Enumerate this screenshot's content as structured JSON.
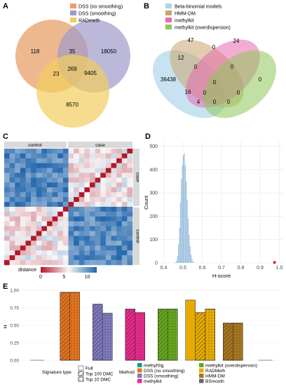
{
  "panels": {
    "A": "A",
    "B": "B",
    "C": "C",
    "D": "D",
    "E": "E"
  },
  "chart_data": [
    {
      "type": "venn",
      "panel": "A",
      "sets": [
        "DSS (no smoothing)",
        "DSS (smoothing)",
        "RADmeth"
      ],
      "colors": [
        "#E8A06A",
        "#9E9ACB",
        "#F2CD5E"
      ],
      "regions": [
        {
          "sets": [
            "DSS (no smoothing)"
          ],
          "value": 118
        },
        {
          "sets": [
            "DSS (no smoothing)",
            "DSS (smoothing)"
          ],
          "value": 35
        },
        {
          "sets": [
            "DSS (smoothing)"
          ],
          "value": 18050
        },
        {
          "sets": [
            "DSS (no smoothing)",
            "RADmeth"
          ],
          "value": 23
        },
        {
          "sets": [
            "DSS (no smoothing)",
            "DSS (smoothing)",
            "RADmeth"
          ],
          "value": 269
        },
        {
          "sets": [
            "DSS (smoothing)",
            "RADmeth"
          ],
          "value": 9405
        },
        {
          "sets": [
            "RADmeth"
          ],
          "value": 8570
        }
      ]
    },
    {
      "type": "venn",
      "panel": "B",
      "sets": [
        "Beta-binomial models",
        "HMM-DM",
        "methylkit",
        "methylkit (overdispersion)"
      ],
      "colors": [
        "#A9D3E8",
        "#C8A46E",
        "#E86AAE",
        "#8FC65A"
      ],
      "regions_values": [
        "36438",
        "12",
        "47",
        "0",
        "24",
        "0",
        "0",
        "0",
        "0",
        "16",
        "0",
        "0",
        "4",
        "0",
        "0"
      ]
    },
    {
      "type": "heatmap",
      "panel": "C",
      "column_groups": [
        "control",
        "case"
      ],
      "row_groups": [
        "case",
        "control"
      ],
      "legend_title": "distance",
      "legend_ticks": [
        "0",
        "5",
        "10"
      ],
      "legend_range": [
        0,
        12
      ],
      "colors": {
        "low": "#B2182B",
        "mid": "#F7F7F7",
        "high": "#2166AC"
      },
      "n": 24
    },
    {
      "type": "histogram",
      "panel": "D",
      "xlabel": "H-score",
      "ylabel": "Count",
      "xlim": [
        0.38,
        1.02
      ],
      "ylim": [
        0,
        520
      ],
      "xticks": [
        "0.4",
        "0.5",
        "0.6",
        "0.7",
        "0.8",
        "0.9",
        "1.0"
      ],
      "xtick_values": [
        0.4,
        0.5,
        0.6,
        0.7,
        0.8,
        0.9,
        1.0
      ],
      "yticks": [
        "0",
        "100",
        "200",
        "300",
        "400",
        "500"
      ],
      "ytick_values": [
        0,
        100,
        200,
        300,
        400,
        500
      ],
      "bin_start": 0.46,
      "bin_width": 0.005,
      "counts": [
        3,
        10,
        30,
        80,
        150,
        260,
        360,
        420,
        460,
        470,
        420,
        350,
        270,
        190,
        120,
        70,
        35,
        15,
        5,
        2
      ],
      "bar_color": "#9CBFDD",
      "highlight_point": {
        "x": 0.975,
        "y": 2,
        "color": "#E41A1C"
      }
    },
    {
      "type": "bar",
      "panel": "E",
      "ylabel": "H",
      "ylim": [
        0,
        1.0
      ],
      "yticks": [
        "0.00",
        "0.25",
        "0.50",
        "0.75",
        "1.00"
      ],
      "ytick_values": [
        0,
        0.25,
        0.5,
        0.75,
        1.0
      ],
      "methods": [
        {
          "name": "methylSig",
          "color": "#00A087",
          "values": [
            null,
            null,
            null
          ]
        },
        {
          "name": "DSS (no smoothing)",
          "color": "#E3731D",
          "values": [
            null,
            0.97,
            0.97
          ]
        },
        {
          "name": "DSS (smoothing)",
          "color": "#7E78BB",
          "values": [
            null,
            0.8,
            0.67
          ]
        },
        {
          "name": "methylkit",
          "color": "#E7298A",
          "values": [
            null,
            0.73,
            0.68
          ]
        },
        {
          "name": "methylkit (overdispersion)",
          "color": "#66A61E",
          "values": [
            null,
            0.73,
            0.73
          ]
        },
        {
          "name": "RADMeth",
          "color": "#E6AB02",
          "values": [
            0.86,
            0.68,
            0.73
          ]
        },
        {
          "name": "HMM-DM",
          "color": "#A6761D",
          "values": [
            null,
            0.53,
            0.53
          ]
        },
        {
          "name": "BSmooth",
          "color": "#666666",
          "values": [
            null,
            null,
            null
          ]
        }
      ],
      "signature_types": [
        "Full",
        "Top 100 DMC",
        "Top 10 DMC"
      ],
      "signature_legend_title": "Signature type",
      "method_legend_title": "Method"
    }
  ]
}
